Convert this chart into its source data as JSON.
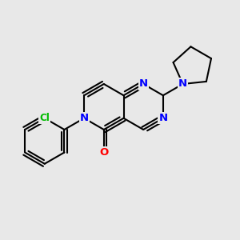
{
  "bg": "#e8e8e8",
  "bond_color": "#000000",
  "bw": 1.5,
  "dbo": 0.012,
  "N_color": "#0000ff",
  "O_color": "#ff0000",
  "Cl_color": "#00bb00",
  "C_color": "#000000",
  "fs": 9.5,
  "xlim": [
    0,
    1
  ],
  "ylim": [
    0,
    1
  ]
}
